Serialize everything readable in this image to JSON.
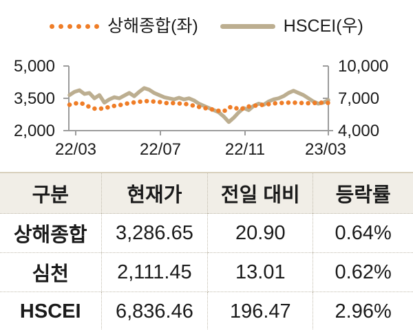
{
  "legend": {
    "series1_label": "상해종합(좌)",
    "series2_label": "HSCEI(우)"
  },
  "chart_data": {
    "type": "line",
    "title": "",
    "x_ticks": [
      "22/03",
      "22/07",
      "22/11",
      "23/03"
    ],
    "left_axis": {
      "label": "상해종합(좌)",
      "ticks": [
        "5,000",
        "3,500",
        "2,000"
      ],
      "range": [
        2000,
        5000
      ]
    },
    "right_axis": {
      "label": "HSCEI(우)",
      "ticks": [
        "10,000",
        "7,000",
        "4,000"
      ],
      "range": [
        4000,
        10000
      ]
    },
    "grid": false,
    "legend_position": "top",
    "series": [
      {
        "name": "상해종합(좌)",
        "axis": "left",
        "style": "dotted",
        "color": "#EF7D27",
        "values": [
          3200,
          3250,
          3300,
          3220,
          3100,
          3020,
          3010,
          3050,
          3090,
          3150,
          3180,
          3230,
          3280,
          3310,
          3340,
          3370,
          3370,
          3350,
          3330,
          3290,
          3270,
          3280,
          3260,
          3240,
          3220,
          3150,
          3100,
          3050,
          3020,
          2960,
          2920,
          2890,
          3080,
          3100,
          2980,
          3040,
          3120,
          3150,
          3180,
          3200,
          3230,
          3260,
          3280,
          3290,
          3300,
          3300,
          3290,
          3280,
          3270,
          3280,
          3290,
          3300,
          3287
        ]
      },
      {
        "name": "HSCEI(우)",
        "axis": "right",
        "style": "solid",
        "color": "#BCAE90",
        "values": [
          7300,
          7600,
          7750,
          7400,
          7500,
          7000,
          7300,
          6600,
          6900,
          7100,
          7000,
          7250,
          7500,
          7200,
          7600,
          7950,
          7800,
          7500,
          7300,
          7100,
          7000,
          6900,
          7050,
          6900,
          7000,
          6800,
          6500,
          6300,
          6100,
          5900,
          5700,
          5300,
          4800,
          5200,
          5700,
          6100,
          5900,
          6300,
          6500,
          6400,
          6700,
          6900,
          7000,
          7200,
          7500,
          7700,
          7500,
          7300,
          7000,
          6700,
          6500,
          6600,
          6836
        ]
      }
    ]
  },
  "table": {
    "headers": [
      "구분",
      "현재가",
      "전일 대비",
      "등락률"
    ],
    "rows": [
      {
        "label": "상해종합",
        "price": "3,286.65",
        "change": "20.90",
        "rate": "0.64%"
      },
      {
        "label": "심천",
        "price": "2,111.45",
        "change": "13.01",
        "rate": "0.62%"
      },
      {
        "label": "HSCEI",
        "price": "6,836.46",
        "change": "196.47",
        "rate": "2.96%"
      }
    ]
  },
  "colors": {
    "shanghai_orange": "#EF7D27",
    "hscei_tan": "#BCAE90",
    "axis_gray": "#9B9B9B",
    "header_bg": "#F1EEE7",
    "table_top_border": "#D8D0BC",
    "dotted_border": "#C0BAAB",
    "text": "#1A1A1A"
  }
}
